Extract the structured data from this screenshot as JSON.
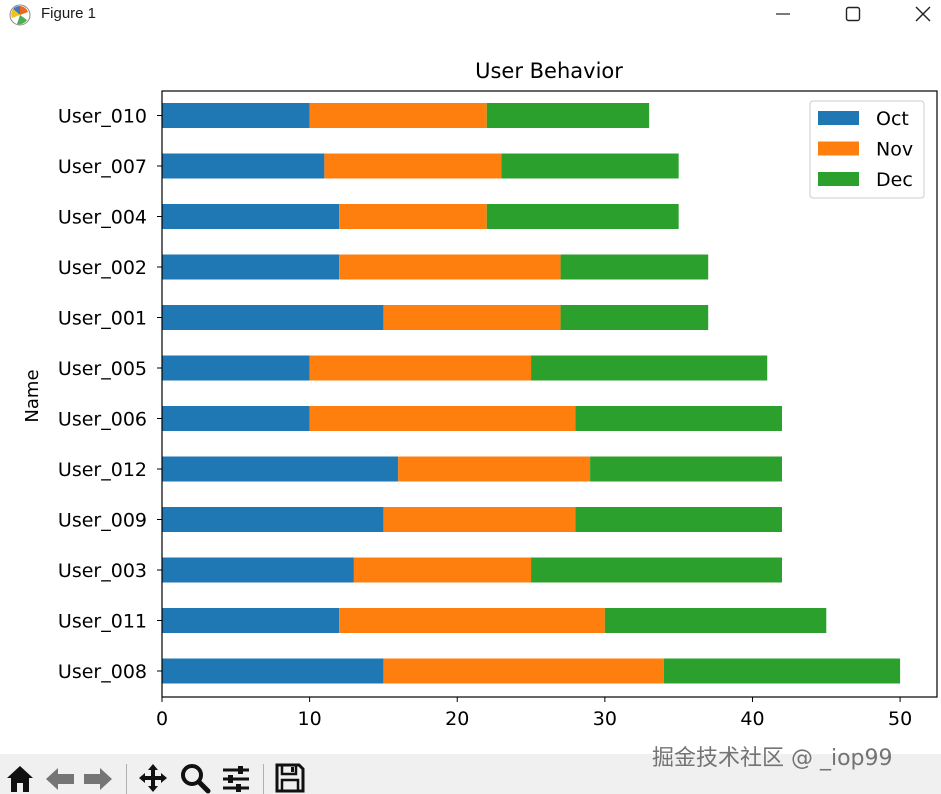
{
  "window": {
    "title": "Figure 1",
    "app_icon": "matplotlib-icon",
    "minimize_icon": "minimize-icon",
    "maximize_icon": "maximize-icon",
    "close_icon": "close-icon"
  },
  "toolbar": {
    "buttons": [
      "home-icon",
      "back-arrow-icon",
      "forward-arrow-icon",
      "pan-icon",
      "zoom-icon",
      "subplots-config-icon",
      "save-icon"
    ]
  },
  "watermark": "掘金技术社区 @ _iop99",
  "colors": {
    "Oct": "#1f77b4",
    "Nov": "#ff7f0e",
    "Dec": "#2ca02c"
  },
  "chart_data": {
    "type": "bar",
    "orientation": "horizontal",
    "stacked": true,
    "title": "User Behavior",
    "xlabel": "",
    "ylabel": "Name",
    "xlim": [
      0,
      52.5
    ],
    "xticks": [
      "0",
      "10",
      "20",
      "30",
      "40",
      "50"
    ],
    "categories": [
      "User_008",
      "User_011",
      "User_003",
      "User_009",
      "User_012",
      "User_006",
      "User_005",
      "User_001",
      "User_002",
      "User_004",
      "User_007",
      "User_010"
    ],
    "series": [
      {
        "name": "Oct",
        "values": [
          15,
          12,
          13,
          15,
          16,
          10,
          10,
          15,
          12,
          12,
          11,
          10
        ]
      },
      {
        "name": "Nov",
        "values": [
          19,
          18,
          12,
          13,
          13,
          18,
          15,
          12,
          15,
          10,
          12,
          12
        ]
      },
      {
        "name": "Dec",
        "values": [
          16,
          15,
          17,
          14,
          13,
          14,
          16,
          10,
          10,
          13,
          12,
          11
        ]
      }
    ],
    "legend": "top-right",
    "grid": false
  }
}
